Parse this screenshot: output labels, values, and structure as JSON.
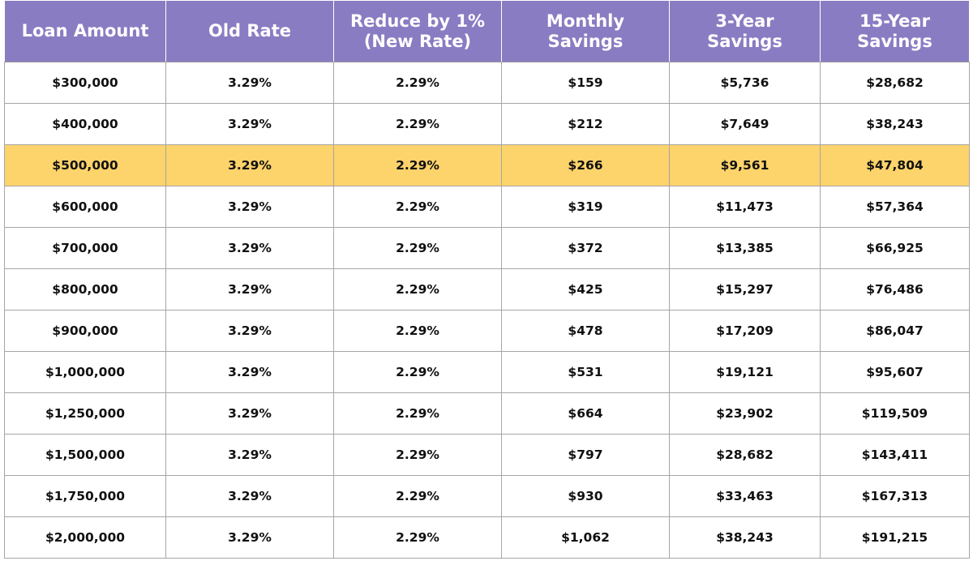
{
  "table": {
    "headers": [
      [
        "Loan Amount"
      ],
      [
        "Old Rate"
      ],
      [
        "Reduce by 1%",
        "(New Rate)"
      ],
      [
        "Monthly",
        "Savings"
      ],
      [
        "3-Year",
        "Savings"
      ],
      [
        "15-Year",
        "Savings"
      ]
    ],
    "highlight_row": 2,
    "colors": {
      "header_bg": "#8a7cc2",
      "header_text": "#ffffff",
      "highlight_bg": "#fdd36b",
      "border": "#a6a6a6"
    },
    "rows": [
      [
        "$300,000",
        "3.29%",
        "2.29%",
        "$159",
        "$5,736",
        "$28,682"
      ],
      [
        "$400,000",
        "3.29%",
        "2.29%",
        "$212",
        "$7,649",
        "$38,243"
      ],
      [
        "$500,000",
        "3.29%",
        "2.29%",
        "$266",
        "$9,561",
        "$47,804"
      ],
      [
        "$600,000",
        "3.29%",
        "2.29%",
        "$319",
        "$11,473",
        "$57,364"
      ],
      [
        "$700,000",
        "3.29%",
        "2.29%",
        "$372",
        "$13,385",
        "$66,925"
      ],
      [
        "$800,000",
        "3.29%",
        "2.29%",
        "$425",
        "$15,297",
        "$76,486"
      ],
      [
        "$900,000",
        "3.29%",
        "2.29%",
        "$478",
        "$17,209",
        "$86,047"
      ],
      [
        "$1,000,000",
        "3.29%",
        "2.29%",
        "$531",
        "$19,121",
        "$95,607"
      ],
      [
        "$1,250,000",
        "3.29%",
        "2.29%",
        "$664",
        "$23,902",
        "$119,509"
      ],
      [
        "$1,500,000",
        "3.29%",
        "2.29%",
        "$797",
        "$28,682",
        "$143,411"
      ],
      [
        "$1,750,000",
        "3.29%",
        "2.29%",
        "$930",
        "$33,463",
        "$167,313"
      ],
      [
        "$2,000,000",
        "3.29%",
        "2.29%",
        "$1,062",
        "$38,243",
        "$191,215"
      ]
    ]
  }
}
